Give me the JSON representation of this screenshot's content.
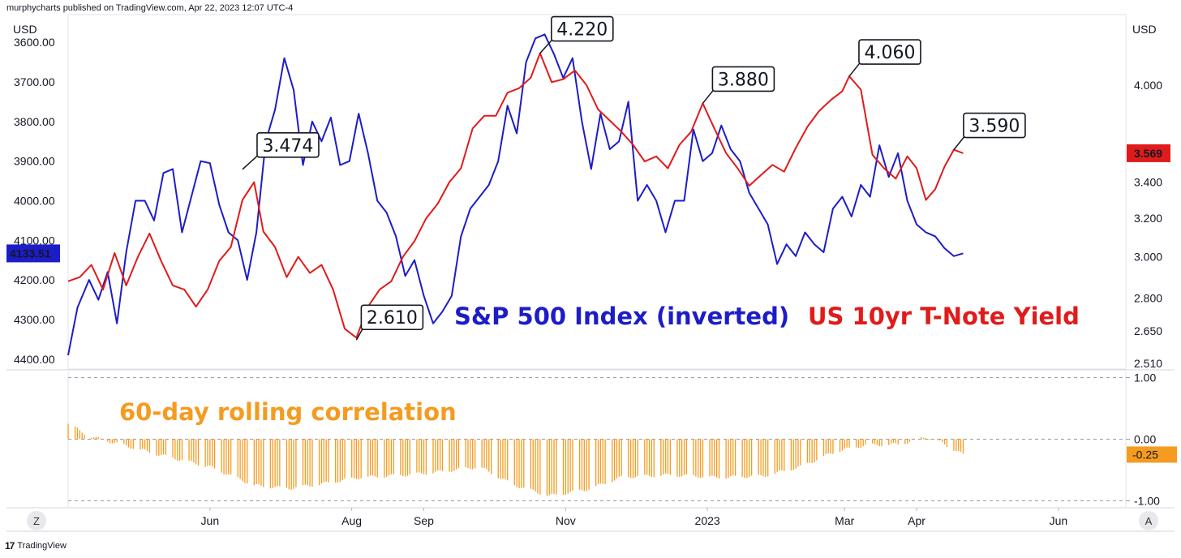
{
  "header": {
    "caption": "murphycharts published on TradingView.com, Apr 22, 2023 12:07 UTC-4"
  },
  "footer": {
    "brand": "TradingView",
    "brand_mark": "17"
  },
  "buttons": {
    "left": "Z",
    "right": "A"
  },
  "colors": {
    "sp500": "#1d1dc8",
    "yield": "#e01b1b",
    "corr": "#f59b1f",
    "grid": "#e0e3eb"
  },
  "chart_data": [
    {
      "type": "line",
      "title": "",
      "xlabel": "",
      "left_axis": {
        "unit": "USD",
        "inverted": true,
        "ylim": [
          3530,
          4425
        ],
        "tick_labels": [
          "3600.00",
          "3700.00",
          "3800.00",
          "3900.00",
          "4000.00",
          "4100.00",
          "4200.00",
          "4300.00",
          "4400.00"
        ],
        "tick_values": [
          3600,
          3700,
          3800,
          3900,
          4000,
          4100,
          4200,
          4300,
          4400
        ]
      },
      "right_axis": {
        "unit": "USD",
        "scale": "log",
        "tick_labels": [
          "4.000",
          "3.400",
          "3.200",
          "3.000",
          "2.800",
          "2.650",
          "2.510"
        ],
        "tick_values": [
          4.0,
          3.4,
          3.2,
          3.0,
          2.8,
          2.65,
          2.51
        ]
      },
      "x_tick_labels": [
        "Jun",
        "Aug",
        "Sep",
        "Nov",
        "2023",
        "Mar",
        "Apr",
        "Jun"
      ],
      "x_tick_dates": [
        "2022-06-01",
        "2022-08-01",
        "2022-09-01",
        "2022-11-01",
        "2023-01-01",
        "2023-03-01",
        "2023-04-01",
        "2023-06-01"
      ],
      "x_range": [
        "2022-04-01",
        "2023-06-30"
      ],
      "series": [
        {
          "name": "S&P 500 Index (inverted)",
          "axis": "left",
          "points": [
            [
              "2022-04-01",
              4390
            ],
            [
              "2022-04-05",
              4270
            ],
            [
              "2022-04-10",
              4200
            ],
            [
              "2022-04-14",
              4250
            ],
            [
              "2022-04-18",
              4180
            ],
            [
              "2022-04-22",
              4310
            ],
            [
              "2022-04-26",
              4130
            ],
            [
              "2022-04-30",
              4000
            ],
            [
              "2022-05-04",
              4000
            ],
            [
              "2022-05-08",
              4050
            ],
            [
              "2022-05-12",
              3930
            ],
            [
              "2022-05-16",
              3920
            ],
            [
              "2022-05-20",
              4080
            ],
            [
              "2022-05-24",
              3990
            ],
            [
              "2022-05-28",
              3900
            ],
            [
              "2022-06-01",
              3905
            ],
            [
              "2022-06-05",
              4010
            ],
            [
              "2022-06-09",
              4080
            ],
            [
              "2022-06-13",
              4100
            ],
            [
              "2022-06-17",
              4200
            ],
            [
              "2022-06-21",
              4080
            ],
            [
              "2022-06-25",
              3850
            ],
            [
              "2022-06-29",
              3770
            ],
            [
              "2022-07-03",
              3640
            ],
            [
              "2022-07-07",
              3720
            ],
            [
              "2022-07-11",
              3910
            ],
            [
              "2022-07-15",
              3800
            ],
            [
              "2022-07-19",
              3850
            ],
            [
              "2022-07-23",
              3790
            ],
            [
              "2022-07-27",
              3910
            ],
            [
              "2022-07-31",
              3900
            ],
            [
              "2022-08-04",
              3780
            ],
            [
              "2022-08-08",
              3880
            ],
            [
              "2022-08-12",
              4000
            ],
            [
              "2022-08-16",
              4030
            ],
            [
              "2022-08-20",
              4090
            ],
            [
              "2022-08-24",
              4190
            ],
            [
              "2022-08-28",
              4150
            ],
            [
              "2022-09-01",
              4240
            ],
            [
              "2022-09-05",
              4310
            ],
            [
              "2022-09-09",
              4280
            ],
            [
              "2022-09-13",
              4240
            ],
            [
              "2022-09-17",
              4090
            ],
            [
              "2022-09-21",
              4020
            ],
            [
              "2022-09-25",
              3990
            ],
            [
              "2022-09-29",
              3960
            ],
            [
              "2022-10-03",
              3900
            ],
            [
              "2022-10-07",
              3760
            ],
            [
              "2022-10-11",
              3830
            ],
            [
              "2022-10-15",
              3650
            ],
            [
              "2022-10-19",
              3590
            ],
            [
              "2022-10-23",
              3580
            ],
            [
              "2022-10-27",
              3630
            ],
            [
              "2022-10-31",
              3690
            ],
            [
              "2022-11-04",
              3640
            ],
            [
              "2022-11-08",
              3800
            ],
            [
              "2022-11-12",
              3920
            ],
            [
              "2022-11-16",
              3780
            ],
            [
              "2022-11-20",
              3870
            ],
            [
              "2022-11-24",
              3850
            ],
            [
              "2022-11-28",
              3750
            ],
            [
              "2022-12-02",
              4000
            ],
            [
              "2022-12-06",
              3960
            ],
            [
              "2022-12-10",
              4000
            ],
            [
              "2022-12-14",
              4080
            ],
            [
              "2022-12-18",
              4000
            ],
            [
              "2022-12-22",
              4000
            ],
            [
              "2022-12-26",
              3820
            ],
            [
              "2022-12-30",
              3900
            ],
            [
              "2023-01-03",
              3880
            ],
            [
              "2023-01-07",
              3810
            ],
            [
              "2023-01-11",
              3870
            ],
            [
              "2023-01-15",
              3900
            ],
            [
              "2023-01-19",
              3980
            ],
            [
              "2023-01-23",
              4020
            ],
            [
              "2023-01-27",
              4060
            ],
            [
              "2023-01-31",
              4160
            ],
            [
              "2023-02-04",
              4110
            ],
            [
              "2023-02-08",
              4140
            ],
            [
              "2023-02-12",
              4080
            ],
            [
              "2023-02-16",
              4110
            ],
            [
              "2023-02-20",
              4130
            ],
            [
              "2023-02-24",
              4020
            ],
            [
              "2023-02-28",
              3990
            ],
            [
              "2023-03-04",
              4040
            ],
            [
              "2023-03-08",
              3960
            ],
            [
              "2023-03-12",
              3990
            ],
            [
              "2023-03-16",
              3860
            ],
            [
              "2023-03-20",
              3940
            ],
            [
              "2023-03-24",
              3880
            ],
            [
              "2023-03-28",
              4000
            ],
            [
              "2023-04-01",
              4060
            ],
            [
              "2023-04-05",
              4080
            ],
            [
              "2023-04-09",
              4090
            ],
            [
              "2023-04-13",
              4120
            ],
            [
              "2023-04-17",
              4140
            ],
            [
              "2023-04-21",
              4133
            ]
          ]
        },
        {
          "name": "US 10yr T-Note Yield",
          "axis": "right",
          "points": [
            [
              "2022-04-01",
              2.88
            ],
            [
              "2022-04-06",
              2.9
            ],
            [
              "2022-04-11",
              2.96
            ],
            [
              "2022-04-16",
              2.84
            ],
            [
              "2022-04-21",
              3.02
            ],
            [
              "2022-04-26",
              2.86
            ],
            [
              "2022-05-01",
              3.0
            ],
            [
              "2022-05-06",
              3.12
            ],
            [
              "2022-05-11",
              2.98
            ],
            [
              "2022-05-16",
              2.86
            ],
            [
              "2022-05-21",
              2.84
            ],
            [
              "2022-05-26",
              2.76
            ],
            [
              "2022-05-31",
              2.84
            ],
            [
              "2022-06-05",
              2.98
            ],
            [
              "2022-06-10",
              3.05
            ],
            [
              "2022-06-15",
              3.3
            ],
            [
              "2022-06-20",
              3.4
            ],
            [
              "2022-06-24",
              3.13
            ],
            [
              "2022-06-29",
              3.05
            ],
            [
              "2022-07-04",
              2.9
            ],
            [
              "2022-07-09",
              3.0
            ],
            [
              "2022-07-14",
              2.92
            ],
            [
              "2022-07-19",
              2.96
            ],
            [
              "2022-07-24",
              2.84
            ],
            [
              "2022-07-29",
              2.66
            ],
            [
              "2022-08-03",
              2.62
            ],
            [
              "2022-08-08",
              2.76
            ],
            [
              "2022-08-13",
              2.84
            ],
            [
              "2022-08-18",
              2.88
            ],
            [
              "2022-08-23",
              3.0
            ],
            [
              "2022-08-28",
              3.08
            ],
            [
              "2022-09-02",
              3.2
            ],
            [
              "2022-09-07",
              3.28
            ],
            [
              "2022-09-12",
              3.4
            ],
            [
              "2022-09-17",
              3.48
            ],
            [
              "2022-09-22",
              3.72
            ],
            [
              "2022-09-27",
              3.8
            ],
            [
              "2022-10-02",
              3.8
            ],
            [
              "2022-10-07",
              3.95
            ],
            [
              "2022-10-12",
              3.98
            ],
            [
              "2022-10-17",
              4.05
            ],
            [
              "2022-10-21",
              4.22
            ],
            [
              "2022-10-26",
              4.02
            ],
            [
              "2022-10-31",
              4.04
            ],
            [
              "2022-11-05",
              4.1
            ],
            [
              "2022-11-10",
              4.0
            ],
            [
              "2022-11-15",
              3.84
            ],
            [
              "2022-11-20",
              3.77
            ],
            [
              "2022-11-25",
              3.7
            ],
            [
              "2022-11-30",
              3.62
            ],
            [
              "2022-12-05",
              3.52
            ],
            [
              "2022-12-10",
              3.55
            ],
            [
              "2022-12-15",
              3.48
            ],
            [
              "2022-12-20",
              3.62
            ],
            [
              "2022-12-25",
              3.7
            ],
            [
              "2022-12-30",
              3.88
            ],
            [
              "2023-01-04",
              3.72
            ],
            [
              "2023-01-09",
              3.57
            ],
            [
              "2023-01-14",
              3.48
            ],
            [
              "2023-01-19",
              3.38
            ],
            [
              "2023-01-24",
              3.44
            ],
            [
              "2023-01-29",
              3.5
            ],
            [
              "2023-02-03",
              3.46
            ],
            [
              "2023-02-08",
              3.6
            ],
            [
              "2023-02-13",
              3.73
            ],
            [
              "2023-02-18",
              3.83
            ],
            [
              "2023-02-23",
              3.9
            ],
            [
              "2023-02-28",
              3.96
            ],
            [
              "2023-03-03",
              4.06
            ],
            [
              "2023-03-08",
              3.97
            ],
            [
              "2023-03-13",
              3.56
            ],
            [
              "2023-03-18",
              3.48
            ],
            [
              "2023-03-23",
              3.42
            ],
            [
              "2023-03-28",
              3.55
            ],
            [
              "2023-04-01",
              3.48
            ],
            [
              "2023-04-05",
              3.3
            ],
            [
              "2023-04-09",
              3.36
            ],
            [
              "2023-04-13",
              3.49
            ],
            [
              "2023-04-17",
              3.59
            ],
            [
              "2023-04-21",
              3.569
            ]
          ]
        }
      ],
      "annotations": [
        {
          "label": "3.474",
          "date": "2022-06-15",
          "value": 3.474,
          "series": "US 10yr T-Note Yield"
        },
        {
          "label": "2.610",
          "date": "2022-08-03",
          "value": 2.61,
          "series": "US 10yr T-Note Yield"
        },
        {
          "label": "4.220",
          "date": "2022-10-21",
          "value": 4.22,
          "series": "US 10yr T-Note Yield"
        },
        {
          "label": "3.880",
          "date": "2022-12-30",
          "value": 3.88,
          "series": "US 10yr T-Note Yield"
        },
        {
          "label": "4.060",
          "date": "2023-03-03",
          "value": 4.06,
          "series": "US 10yr T-Note Yield"
        },
        {
          "label": "3.590",
          "date": "2023-04-17",
          "value": 3.59,
          "series": "US 10yr T-Note Yield"
        }
      ],
      "last_value_badges": [
        {
          "label": "4133.51",
          "axis": "left",
          "series": "S&P 500 Index (inverted)"
        },
        {
          "label": "3.569",
          "axis": "right",
          "series": "US 10yr T-Note Yield"
        }
      ],
      "text_labels": [
        "S&P 500 Index (inverted)",
        "US 10yr T-Note Yield"
      ]
    },
    {
      "type": "bar",
      "title": "60-day rolling correlation",
      "right_axis": {
        "tick_labels": [
          "1.00",
          "0.00",
          "-1.00"
        ],
        "tick_values": [
          1,
          0,
          -1
        ],
        "ylim": [
          -1.1,
          1.1
        ],
        "dashed_reference_lines": [
          1,
          0,
          -1
        ]
      },
      "last_value_badge": "-0.25",
      "profile_keypoints": [
        [
          "2022-04-01",
          0.25
        ],
        [
          "2022-04-10",
          0.05
        ],
        [
          "2022-04-20",
          -0.05
        ],
        [
          "2022-05-10",
          -0.25
        ],
        [
          "2022-06-01",
          -0.45
        ],
        [
          "2022-06-20",
          -0.75
        ],
        [
          "2022-07-05",
          -0.8
        ],
        [
          "2022-07-20",
          -0.72
        ],
        [
          "2022-08-05",
          -0.62
        ],
        [
          "2022-08-25",
          -0.58
        ],
        [
          "2022-09-10",
          -0.52
        ],
        [
          "2022-09-25",
          -0.45
        ],
        [
          "2022-10-10",
          -0.75
        ],
        [
          "2022-10-25",
          -0.92
        ],
        [
          "2022-11-10",
          -0.82
        ],
        [
          "2022-11-25",
          -0.62
        ],
        [
          "2022-12-15",
          -0.58
        ],
        [
          "2023-01-05",
          -0.62
        ],
        [
          "2023-01-25",
          -0.6
        ],
        [
          "2023-02-10",
          -0.45
        ],
        [
          "2023-02-25",
          -0.2
        ],
        [
          "2023-03-10",
          -0.1
        ],
        [
          "2023-03-25",
          -0.08
        ],
        [
          "2023-04-05",
          0.04
        ],
        [
          "2023-04-12",
          -0.06
        ],
        [
          "2023-04-21",
          -0.25
        ]
      ]
    }
  ]
}
